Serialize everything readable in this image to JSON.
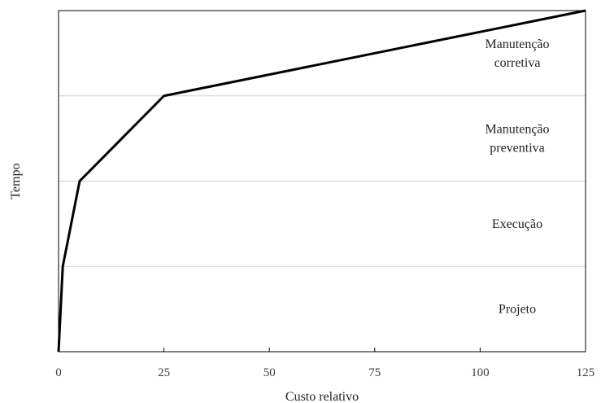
{
  "chart_data": {
    "type": "line",
    "xlabel": "Custo relativo",
    "ylabel": "Tempo",
    "xlim": [
      0,
      125
    ],
    "x_ticks": [
      "0",
      "25",
      "50",
      "75",
      "100",
      "125"
    ],
    "x_tick_values": [
      0,
      25,
      50,
      75,
      100,
      125
    ],
    "y_ticks_shown": false,
    "grid": "horizontal phase dividers",
    "phases": [
      {
        "lines": [
          "Projeto"
        ]
      },
      {
        "lines": [
          "Execução"
        ]
      },
      {
        "lines": [
          "Manutenção",
          "preventiva"
        ]
      },
      {
        "lines": [
          "Manutenção",
          "corretiva"
        ]
      }
    ],
    "series": [
      {
        "x": [
          0,
          1,
          5,
          25,
          125
        ],
        "y": [
          0,
          1,
          2,
          3,
          4
        ],
        "color": "#000000"
      }
    ],
    "y_phase_boundaries": [
      1,
      2,
      3
    ],
    "ylim": [
      0,
      4
    ]
  }
}
